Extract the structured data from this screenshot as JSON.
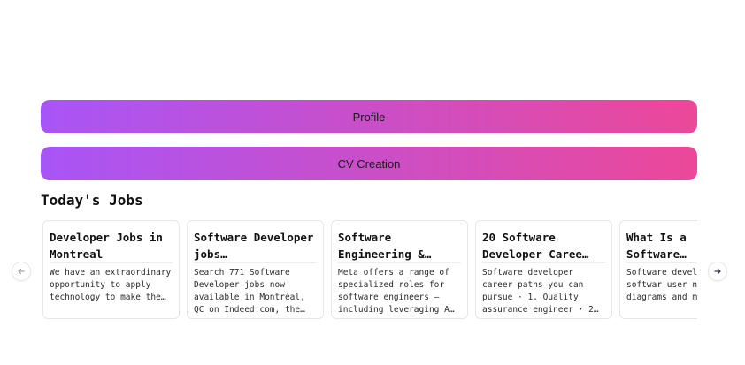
{
  "buttons": {
    "profile_label": "Profile",
    "cv_label": "CV Creation"
  },
  "jobs_section": {
    "title": "Today's Jobs",
    "cards": [
      {
        "title": "Developer Jobs in Montreal",
        "description": "We have an extraordinary opportunity to apply technology to make the…"
      },
      {
        "title": "Software Developer jobs…",
        "description": "Search 771 Software Developer jobs now available in Montréal, QC on Indeed.com, the…"
      },
      {
        "title": "Software Engineering &…",
        "description": "Meta offers a range of specialized roles for software engineers — including leveraging A…"
      },
      {
        "title": "20 Software Developer Caree…",
        "description": "Software developer career paths you can pursue · 1. Quality assurance engineer · 2…"
      },
      {
        "title": "What Is a Software…",
        "description": "Software devel create softwar user needs by diagrams and m"
      }
    ]
  },
  "icons": {
    "prev": "arrow-left-icon",
    "next": "arrow-right-icon"
  },
  "colors": {
    "gradient_start": "#a855f7",
    "gradient_end": "#ec4899"
  }
}
